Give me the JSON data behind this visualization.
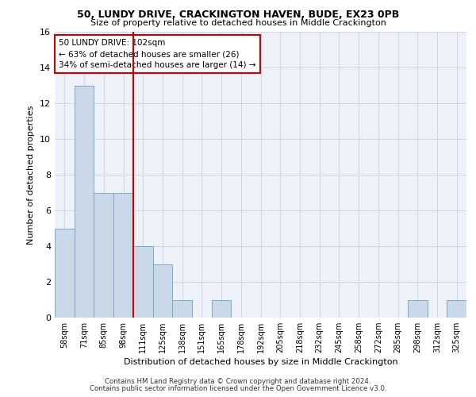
{
  "title_line1": "50, LUNDY DRIVE, CRACKINGTON HAVEN, BUDE, EX23 0PB",
  "title_line2": "Size of property relative to detached houses in Middle Crackington",
  "xlabel": "Distribution of detached houses by size in Middle Crackington",
  "ylabel": "Number of detached properties",
  "categories": [
    "58sqm",
    "71sqm",
    "85sqm",
    "98sqm",
    "111sqm",
    "125sqm",
    "138sqm",
    "151sqm",
    "165sqm",
    "178sqm",
    "192sqm",
    "205sqm",
    "218sqm",
    "232sqm",
    "245sqm",
    "258sqm",
    "272sqm",
    "285sqm",
    "298sqm",
    "312sqm",
    "325sqm"
  ],
  "values": [
    5,
    13,
    7,
    7,
    4,
    3,
    1,
    0,
    1,
    0,
    0,
    0,
    0,
    0,
    0,
    0,
    0,
    0,
    1,
    0,
    1
  ],
  "bar_color": "#c9d9ea",
  "bar_edge_color": "#7aaac8",
  "vline_x": 3.5,
  "vline_color": "#cc0000",
  "annotation_text": "50 LUNDY DRIVE: 102sqm\n← 63% of detached houses are smaller (26)\n34% of semi-detached houses are larger (14) →",
  "annotation_box_color": "#cc0000",
  "ylim": [
    0,
    16
  ],
  "yticks": [
    0,
    2,
    4,
    6,
    8,
    10,
    12,
    14,
    16
  ],
  "grid_color": "#d0d8e8",
  "bg_color": "#eef2f8",
  "footer_line1": "Contains HM Land Registry data © Crown copyright and database right 2024.",
  "footer_line2": "Contains public sector information licensed under the Open Government Licence v3.0."
}
